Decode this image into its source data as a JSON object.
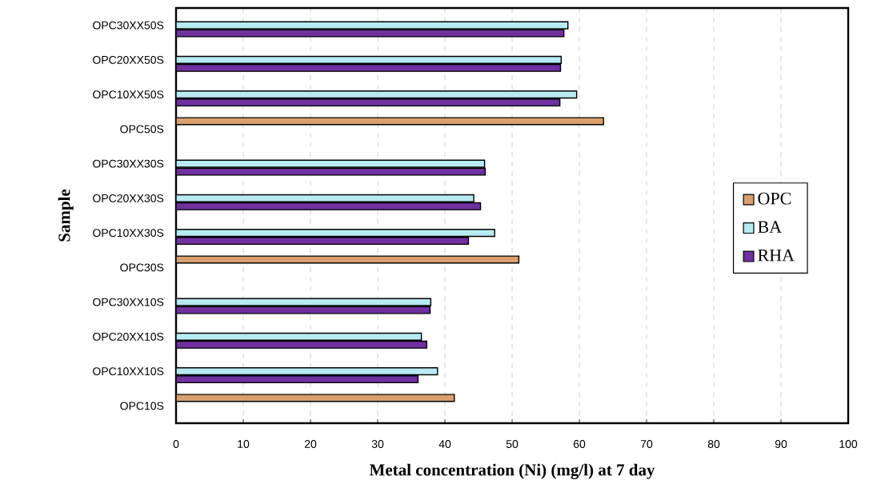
{
  "chart_data": {
    "type": "bar",
    "orientation": "horizontal",
    "xlabel": "Metal concentration (Ni) (mg/l) at 7 day",
    "ylabel": "Sample",
    "categories": [
      "OPC30XX50S",
      "OPC20XX50S",
      "OPC10XX50S",
      "OPC50S",
      "OPC30XX30S",
      "OPC20XX30S",
      "OPC10XX30S",
      "OPC30S",
      "OPC30XX10S",
      "OPC20XX10S",
      "OPC10XX10S",
      "OPC10S"
    ],
    "series": [
      {
        "name": "OPC",
        "color": "#d9a06e",
        "values": [
          null,
          null,
          null,
          63.6,
          null,
          null,
          null,
          51.0,
          null,
          null,
          null,
          41.4
        ]
      },
      {
        "name": "BA",
        "color": "#b8eaf2",
        "values": [
          58.3,
          57.3,
          59.6,
          null,
          45.9,
          44.3,
          47.4,
          null,
          37.9,
          36.5,
          38.9,
          null
        ]
      },
      {
        "name": "RHA",
        "color": "#7030a0",
        "values": [
          57.7,
          57.2,
          57.1,
          null,
          46.0,
          45.3,
          43.5,
          null,
          37.8,
          37.3,
          36.0,
          null
        ]
      }
    ],
    "xlim": [
      0,
      100
    ],
    "xticks": [
      0,
      10,
      20,
      30,
      40,
      50,
      60,
      70,
      80,
      90,
      100
    ],
    "grid": "x",
    "legend": "right"
  }
}
